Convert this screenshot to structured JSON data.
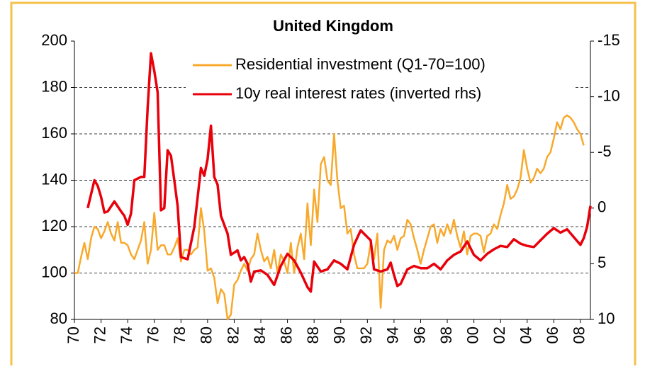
{
  "chart_data": {
    "type": "line",
    "title": "United Kingdom",
    "xlim": [
      1970,
      2008.75
    ],
    "xticks": [
      {
        "value": 1970,
        "label": "70"
      },
      {
        "value": 1972,
        "label": "72"
      },
      {
        "value": 1974,
        "label": "74"
      },
      {
        "value": 1976,
        "label": "76"
      },
      {
        "value": 1978,
        "label": "78"
      },
      {
        "value": 1980,
        "label": "80"
      },
      {
        "value": 1982,
        "label": "82"
      },
      {
        "value": 1984,
        "label": "84"
      },
      {
        "value": 1986,
        "label": "86"
      },
      {
        "value": 1988,
        "label": "88"
      },
      {
        "value": 1990,
        "label": "90"
      },
      {
        "value": 1992,
        "label": "92"
      },
      {
        "value": 1994,
        "label": "94"
      },
      {
        "value": 1996,
        "label": "96"
      },
      {
        "value": 1998,
        "label": "98"
      },
      {
        "value": 2000,
        "label": "00"
      },
      {
        "value": 2002,
        "label": "02"
      },
      {
        "value": 2004,
        "label": "04"
      },
      {
        "value": 2006,
        "label": "06"
      },
      {
        "value": 2008,
        "label": "08"
      }
    ],
    "ylim": [
      80,
      200
    ],
    "yticks": [
      80,
      100,
      120,
      140,
      160,
      180,
      200
    ],
    "y2lim": [
      -15,
      10
    ],
    "y2ticks": [
      -15,
      -10,
      -5,
      0,
      5,
      10
    ],
    "y2_inverted": true,
    "grid": true,
    "legend": "top-right",
    "series": [
      {
        "name": "Residential investment (Q1-70=100)",
        "color": "#f8a92c",
        "x": [
          1970,
          1970.25,
          1970.5,
          1970.75,
          1971,
          1971.25,
          1971.5,
          1971.75,
          1972,
          1972.25,
          1972.5,
          1972.75,
          1973,
          1973.25,
          1973.5,
          1973.75,
          1974,
          1974.25,
          1974.5,
          1974.75,
          1975,
          1975.25,
          1975.5,
          1975.75,
          1976,
          1976.25,
          1976.5,
          1976.75,
          1977,
          1977.25,
          1977.5,
          1977.75,
          1978,
          1978.25,
          1978.5,
          1978.75,
          1979,
          1979.25,
          1979.5,
          1979.75,
          1980,
          1980.25,
          1980.5,
          1980.75,
          1981,
          1981.25,
          1981.5,
          1981.75,
          1982,
          1982.25,
          1982.5,
          1982.75,
          1983,
          1983.25,
          1983.5,
          1983.75,
          1984,
          1984.25,
          1984.5,
          1984.75,
          1985,
          1985.25,
          1985.5,
          1985.75,
          1986,
          1986.25,
          1986.5,
          1986.75,
          1987,
          1987.25,
          1987.5,
          1987.75,
          1988,
          1988.25,
          1988.5,
          1988.75,
          1989,
          1989.25,
          1989.5,
          1989.75,
          1990,
          1990.25,
          1990.5,
          1990.75,
          1991,
          1991.25,
          1991.5,
          1991.75,
          1992,
          1992.25,
          1992.5,
          1992.75,
          1993,
          1993.25,
          1993.5,
          1993.75,
          1994,
          1994.25,
          1994.5,
          1994.75,
          1995,
          1995.25,
          1995.5,
          1995.75,
          1996,
          1996.25,
          1996.5,
          1996.75,
          1997,
          1997.25,
          1997.5,
          1997.75,
          1998,
          1998.25,
          1998.5,
          1998.75,
          1999,
          1999.25,
          1999.5,
          1999.75,
          2000,
          2000.25,
          2000.5,
          2000.75,
          2001,
          2001.25,
          2001.5,
          2001.75,
          2002,
          2002.25,
          2002.5,
          2002.75,
          2003,
          2003.25,
          2003.5,
          2003.75,
          2004,
          2004.25,
          2004.5,
          2004.75,
          2005,
          2005.25,
          2005.5,
          2005.75,
          2006,
          2006.25,
          2006.5,
          2006.75,
          2007,
          2007.25,
          2007.5,
          2007.75,
          2008,
          2008.25
        ],
        "values": [
          100,
          100,
          107,
          113,
          106,
          115,
          120,
          119,
          115,
          118,
          122,
          117,
          114,
          122,
          113,
          113,
          112,
          108,
          106,
          110,
          114,
          122,
          104,
          110,
          126,
          110,
          112,
          112,
          108,
          108,
          111,
          115,
          105,
          110,
          110,
          108,
          110,
          111,
          128,
          118,
          101,
          102,
          98,
          87,
          93,
          91,
          80,
          82,
          95,
          97,
          101,
          104,
          101,
          106,
          108,
          117,
          110,
          105,
          107,
          102,
          110,
          100,
          108,
          105,
          100,
          113,
          100,
          111,
          117,
          106,
          130,
          112,
          136,
          122,
          147,
          150,
          140,
          138,
          160,
          140,
          128,
          129,
          117,
          119,
          108,
          102,
          102,
          102,
          104,
          113,
          106,
          117,
          85,
          110,
          114,
          113,
          116,
          110,
          115,
          116,
          123,
          121,
          115,
          110,
          104,
          110,
          115,
          120,
          121,
          113,
          119,
          116,
          121,
          117,
          123,
          116,
          111,
          118,
          108,
          116,
          117,
          117,
          116,
          109,
          116,
          117,
          121,
          119,
          125,
          130,
          138,
          132,
          133,
          136,
          141,
          153,
          145,
          139,
          141,
          145,
          143,
          145,
          150,
          152,
          158,
          165,
          162,
          167,
          168,
          167,
          165,
          162,
          160,
          155
        ]
      },
      {
        "name": "10y real interest rates (inverted rhs)",
        "color": "#e8000b",
        "axis": "y2",
        "x": [
          1971,
          1971.5,
          1971.75,
          1972,
          1972.25,
          1972.5,
          1973,
          1973.5,
          1973.75,
          1974,
          1974.25,
          1974.5,
          1975,
          1975.25,
          1975.5,
          1975.75,
          1976,
          1976.25,
          1976.5,
          1976.75,
          1977,
          1977.25,
          1977.5,
          1977.75,
          1978,
          1978.5,
          1979,
          1979.5,
          1979.75,
          1980,
          1980.25,
          1980.5,
          1980.75,
          1981,
          1981.5,
          1981.75,
          1982,
          1982.25,
          1982.5,
          1982.75,
          1983,
          1983.25,
          1983.5,
          1984,
          1984.5,
          1985,
          1985.5,
          1986,
          1986.5,
          1987,
          1987.5,
          1987.75,
          1988,
          1988.5,
          1989,
          1989.5,
          1990,
          1990.5,
          1991,
          1991.5,
          1991.75,
          1992,
          1992.25,
          1992.5,
          1993,
          1993.5,
          1993.75,
          1994,
          1994.25,
          1994.5,
          1995,
          1995.5,
          1996,
          1996.5,
          1997,
          1997.5,
          1998,
          1998.5,
          1999,
          1999.5,
          2000,
          2000.5,
          2001,
          2001.5,
          2002,
          2002.5,
          2003,
          2003.5,
          2004,
          2004.5,
          2005,
          2005.5,
          2006,
          2006.5,
          2007,
          2007.5,
          2008,
          2008.25,
          2008.5,
          2008.75
        ],
        "values": [
          0,
          -2.5,
          -2,
          -1,
          0.4,
          0.3,
          -0.6,
          0.3,
          0.7,
          1.5,
          0.5,
          -2.5,
          -2.8,
          -2.8,
          -9,
          -13.9,
          -12.3,
          -10.4,
          0.2,
          0,
          -5.2,
          -4.7,
          -2.5,
          -0.2,
          4.4,
          4.6,
          1.7,
          -3.6,
          -2.9,
          -4.4,
          -7.4,
          -2.8,
          -2.1,
          0.7,
          2.3,
          4.2,
          4,
          3.8,
          4.7,
          4.4,
          5,
          6.6,
          5.7,
          5.6,
          6,
          6.9,
          5.2,
          4.1,
          4.7,
          5.8,
          7.1,
          7.5,
          4.8,
          5.7,
          5.5,
          4.7,
          5,
          5.5,
          3.3,
          2,
          2.3,
          2.6,
          2.9,
          5.5,
          5.7,
          5.5,
          4.9,
          6,
          7,
          6.8,
          5.5,
          5.2,
          5.4,
          5.4,
          5,
          5.5,
          4.7,
          4.2,
          3.9,
          3,
          4.2,
          4.7,
          4.1,
          3.7,
          3.4,
          3.5,
          2.8,
          3.2,
          3.4,
          3.5,
          2.9,
          2.3,
          1.8,
          2.2,
          1.9,
          2.6,
          3.3,
          2.7,
          1.7,
          -0.2
        ]
      }
    ]
  }
}
